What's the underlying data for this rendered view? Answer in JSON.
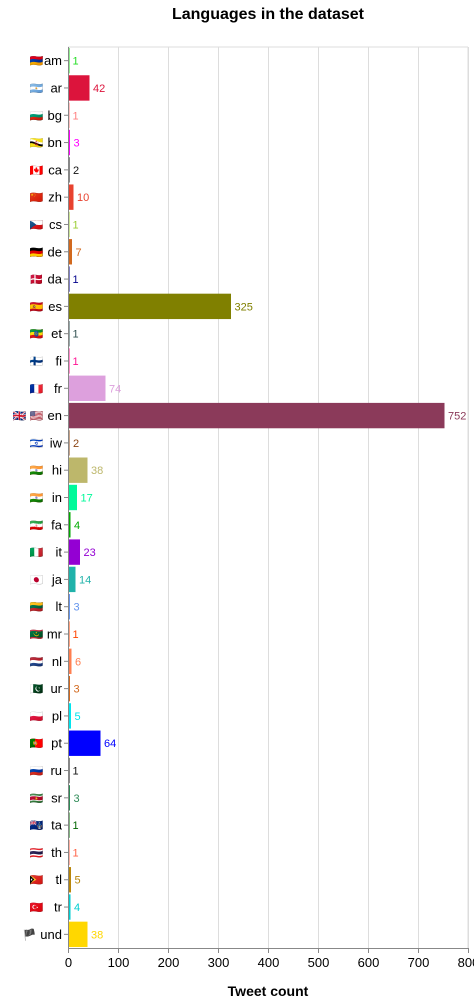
{
  "chart_data": {
    "type": "bar",
    "orientation": "horizontal",
    "title": "Languages in the dataset",
    "xlabel": "Tweet count",
    "ylabel": "",
    "xlim": [
      0,
      800
    ],
    "xticks": [
      0,
      100,
      200,
      300,
      400,
      500,
      600,
      700,
      800
    ],
    "grid": true,
    "categories": [
      {
        "code": "am",
        "flag": "🇦🇲",
        "value": 1,
        "color": "#22dd22"
      },
      {
        "code": "ar",
        "flag": "🇦🇷",
        "value": 42,
        "color": "#dc143c"
      },
      {
        "code": "bg",
        "flag": "🇧🇬",
        "value": 1,
        "color": "#ff7f7f"
      },
      {
        "code": "bn",
        "flag": "🇧🇳",
        "value": 3,
        "color": "#ff00ff"
      },
      {
        "code": "ca",
        "flag": "🇨🇦",
        "value": 2,
        "color": "#111111"
      },
      {
        "code": "zh",
        "flag": "🇨🇳",
        "value": 10,
        "color": "#e8422f"
      },
      {
        "code": "cs",
        "flag": "🇨🇿",
        "value": 1,
        "color": "#9acd32"
      },
      {
        "code": "de",
        "flag": "🇩🇪",
        "value": 7,
        "color": "#d2691e"
      },
      {
        "code": "da",
        "flag": "🇩🇰",
        "value": 1,
        "color": "#00008b"
      },
      {
        "code": "es",
        "flag": "🇪🇸",
        "value": 325,
        "color": "#808000"
      },
      {
        "code": "et",
        "flag": "🇪🇹",
        "value": 1,
        "color": "#2f4f4f"
      },
      {
        "code": "fi",
        "flag": "🇫🇮",
        "value": 1,
        "color": "#ff1493"
      },
      {
        "code": "fr",
        "flag": "🇫🇷",
        "value": 74,
        "color": "#dda0dd"
      },
      {
        "code": "en",
        "flag": "🇬🇧 🇺🇸",
        "value": 752,
        "color": "#8b3a5a"
      },
      {
        "code": "iw",
        "flag": "🇮🇱",
        "value": 2,
        "color": "#8b4513"
      },
      {
        "code": "hi",
        "flag": "🇮🇳",
        "value": 38,
        "color": "#bdb76b"
      },
      {
        "code": "in",
        "flag": "🇮🇳",
        "value": 17,
        "color": "#00fa9a"
      },
      {
        "code": "fa",
        "flag": "🇮🇷",
        "value": 4,
        "color": "#00aa00"
      },
      {
        "code": "it",
        "flag": "🇮🇹",
        "value": 23,
        "color": "#9400d3"
      },
      {
        "code": "ja",
        "flag": "🇯🇵",
        "value": 14,
        "color": "#20b2aa"
      },
      {
        "code": "lt",
        "flag": "🇱🇹",
        "value": 3,
        "color": "#6495ed"
      },
      {
        "code": "mr",
        "flag": "🇲🇷",
        "value": 1,
        "color": "#ff4500"
      },
      {
        "code": "nl",
        "flag": "🇳🇱",
        "value": 6,
        "color": "#ff7f50"
      },
      {
        "code": "ur",
        "flag": "🇵🇰",
        "value": 3,
        "color": "#d2691e"
      },
      {
        "code": "pl",
        "flag": "🇵🇱",
        "value": 5,
        "color": "#00e5ee"
      },
      {
        "code": "pt",
        "flag": "🇵🇹",
        "value": 64,
        "color": "#0000ff"
      },
      {
        "code": "ru",
        "flag": "🇷🇺",
        "value": 1,
        "color": "#111111"
      },
      {
        "code": "sr",
        "flag": "🇸🇷",
        "value": 3,
        "color": "#2e8b57"
      },
      {
        "code": "ta",
        "flag": "🇹🇦",
        "value": 1,
        "color": "#006400"
      },
      {
        "code": "th",
        "flag": "🇹🇭",
        "value": 1,
        "color": "#ff6347"
      },
      {
        "code": "tl",
        "flag": "🇹🇱",
        "value": 5,
        "color": "#b8860b"
      },
      {
        "code": "tr",
        "flag": "🇹🇷",
        "value": 4,
        "color": "#00ced1"
      },
      {
        "code": "und",
        "flag": "🏴",
        "value": 38,
        "color": "#ffd700"
      }
    ]
  }
}
